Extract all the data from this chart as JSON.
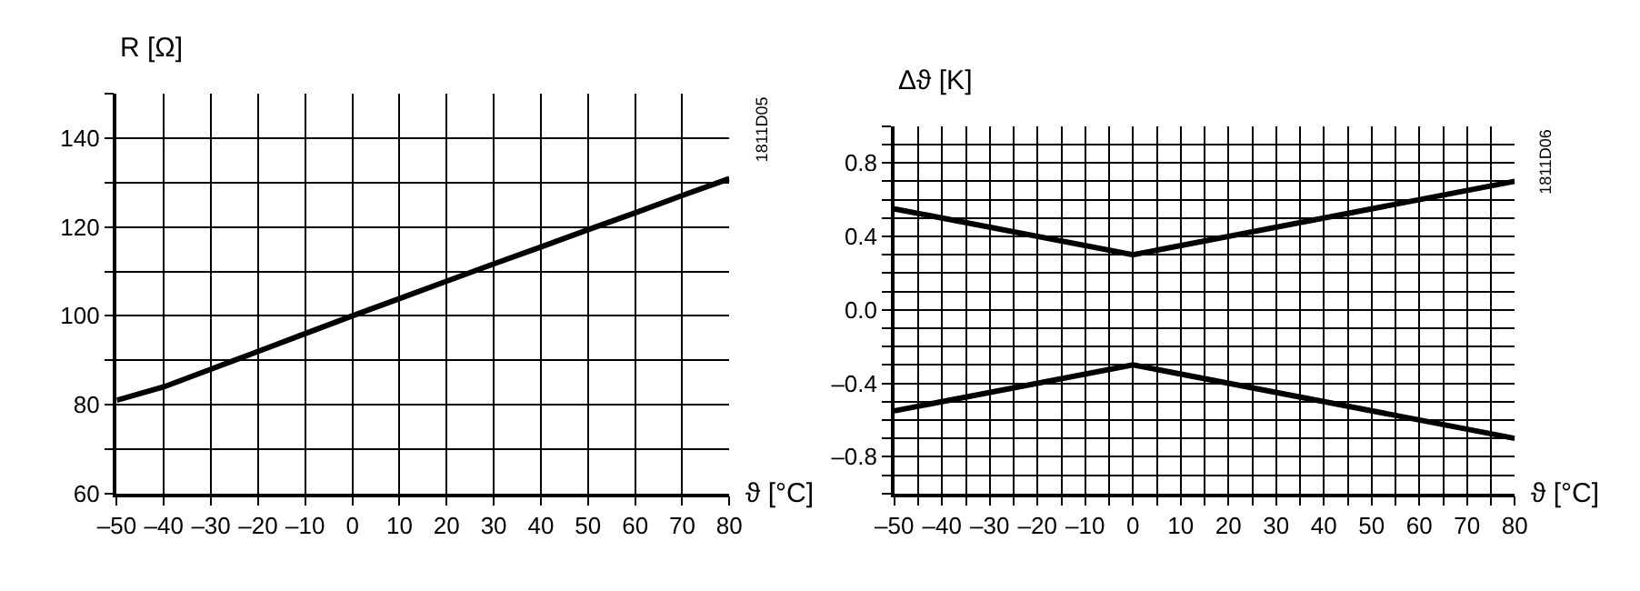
{
  "chart_data": [
    {
      "type": "line",
      "ylabel": "R [Ω]",
      "xlabel": "ϑ [°C]",
      "annotations": [
        "1811D05"
      ],
      "x": [
        -50,
        -40,
        -30,
        -20,
        -10,
        0,
        10,
        20,
        30,
        40,
        50,
        60,
        70,
        80
      ],
      "series": [
        {
          "color": "#000000",
          "values": [
            81,
            84,
            88,
            92,
            96,
            100,
            103.9,
            107.8,
            111.7,
            115.5,
            119.4,
            123.2,
            127.1,
            130.9
          ]
        }
      ],
      "xlim": [
        -50,
        80
      ],
      "xticks": [
        {
          "value": -50,
          "label": "–50"
        },
        {
          "value": -40,
          "label": "–40"
        },
        {
          "value": -30,
          "label": "–30"
        },
        {
          "value": -20,
          "label": "–20"
        },
        {
          "value": -10,
          "label": "–10"
        },
        0,
        10,
        20,
        30,
        40,
        50,
        60,
        70,
        80
      ],
      "ylim": [
        60,
        150
      ],
      "yticks": [
        60,
        {
          "value": 70,
          "label": null
        },
        80,
        {
          "value": 90,
          "label": null
        },
        100,
        {
          "value": 110,
          "label": null
        },
        120,
        {
          "value": 130,
          "label": null
        },
        140,
        {
          "value": 150,
          "label": null
        }
      ],
      "grid": true,
      "marker": "none",
      "line_style": "solid"
    },
    {
      "type": "line",
      "ylabel": "Δϑ [K]",
      "xlabel": "ϑ [°C]",
      "annotations": [
        "1811D06"
      ],
      "x": [
        -50,
        0,
        80
      ],
      "series": [
        {
          "color": "#000000",
          "values": [
            0.55,
            0.3,
            0.7
          ]
        },
        {
          "color": "#000000",
          "values": [
            -0.55,
            -0.3,
            -0.7
          ]
        }
      ],
      "xlim": [
        -50,
        80
      ],
      "xticks": [
        {
          "value": -50,
          "label": "–50"
        },
        {
          "value": -45,
          "label": null
        },
        {
          "value": -40,
          "label": "–40"
        },
        {
          "value": -35,
          "label": null
        },
        {
          "value": -30,
          "label": "–30"
        },
        {
          "value": -25,
          "label": null
        },
        {
          "value": -20,
          "label": "–20"
        },
        {
          "value": -15,
          "label": null
        },
        {
          "value": -10,
          "label": "–10"
        },
        {
          "value": -5,
          "label": null
        },
        0,
        {
          "value": 5,
          "label": null
        },
        10,
        {
          "value": 15,
          "label": null
        },
        20,
        {
          "value": 25,
          "label": null
        },
        30,
        {
          "value": 35,
          "label": null
        },
        40,
        {
          "value": 45,
          "label": null
        },
        50,
        {
          "value": 55,
          "label": null
        },
        60,
        {
          "value": 65,
          "label": null
        },
        70,
        {
          "value": 75,
          "label": null
        },
        80
      ],
      "ylim": [
        -1.0,
        1.0
      ],
      "yticks": [
        {
          "value": -1.0,
          "label": null
        },
        {
          "value": -0.9,
          "label": null
        },
        {
          "value": -0.8,
          "label": "–0.8"
        },
        {
          "value": -0.7,
          "label": null
        },
        {
          "value": -0.6,
          "label": null
        },
        {
          "value": -0.5,
          "label": null
        },
        {
          "value": -0.4,
          "label": "–0.4"
        },
        {
          "value": -0.3,
          "label": null
        },
        {
          "value": -0.2,
          "label": null
        },
        {
          "value": -0.1,
          "label": null
        },
        {
          "value": 0,
          "label": "0.0"
        },
        {
          "value": 0.1,
          "label": null
        },
        {
          "value": 0.2,
          "label": null
        },
        {
          "value": 0.3,
          "label": null
        },
        0.4,
        {
          "value": 0.5,
          "label": null
        },
        {
          "value": 0.6,
          "label": null
        },
        {
          "value": 0.7,
          "label": null
        },
        0.8,
        {
          "value": 0.9,
          "label": null
        },
        {
          "value": 1.0,
          "label": null
        }
      ],
      "grid": true,
      "marker": "none",
      "line_style": "solid"
    }
  ]
}
